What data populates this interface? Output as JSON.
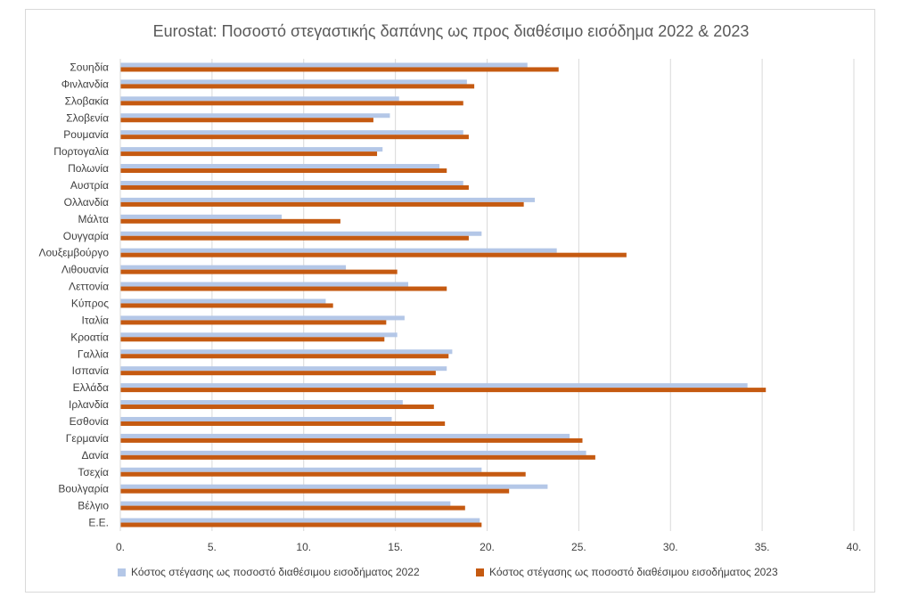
{
  "chart_data": {
    "type": "bar",
    "orientation": "horizontal",
    "title": "Eurostat: Ποσοστό στεγαστικής δαπάνης ως προς διαθέσιμο εισόδημα 2022 & 2023",
    "categories": [
      "Σουηδία",
      "Φινλανδία",
      "Σλοβακία",
      "Σλοβενία",
      "Ρουμανία",
      "Πορτογαλία",
      "Πολωνία",
      "Αυστρία",
      "Ολλανδία",
      "Μάλτα",
      "Ουγγαρία",
      "Λουξεμβούργο",
      "Λιθουανία",
      "Λεττονία",
      "Κύπρος",
      "Ιταλία",
      "Κροατία",
      "Γαλλία",
      "Ισπανία",
      "Ελλάδα",
      "Ιρλανδία",
      "Εσθονία",
      "Γερμανία",
      "Δανία",
      "Τσεχία",
      "Βουλγαρία",
      "Βέλγιο",
      "Ε.Ε."
    ],
    "series": [
      {
        "name": "Κόστος στέγασης ως ποσοστό διαθέσιμου εισοδήματος 2022",
        "color": "#b4c7e7",
        "values": [
          22.2,
          18.9,
          15.2,
          14.7,
          18.7,
          14.3,
          17.4,
          18.7,
          22.6,
          8.8,
          19.7,
          23.8,
          12.3,
          15.7,
          11.2,
          15.5,
          15.1,
          18.1,
          17.8,
          34.2,
          15.4,
          14.8,
          24.5,
          25.4,
          19.7,
          23.3,
          18.0,
          19.6
        ]
      },
      {
        "name": "Κόστος στέγασης ως ποσοστό διαθέσιμου εισοδήματος 2023",
        "color": "#c55a11",
        "values": [
          23.9,
          19.3,
          18.7,
          13.8,
          19.0,
          14.0,
          17.8,
          19.0,
          22.0,
          12.0,
          19.0,
          27.6,
          15.1,
          17.8,
          11.6,
          14.5,
          14.4,
          17.9,
          17.2,
          35.2,
          17.1,
          17.7,
          25.2,
          25.9,
          22.1,
          21.2,
          18.8,
          19.7
        ]
      }
    ],
    "x_ticks": [
      "0.",
      "5.",
      "10.",
      "15.",
      "20.",
      "25.",
      "30.",
      "35.",
      "40."
    ],
    "xlim": [
      0,
      40
    ],
    "grid": true,
    "legend_position": "bottom"
  }
}
